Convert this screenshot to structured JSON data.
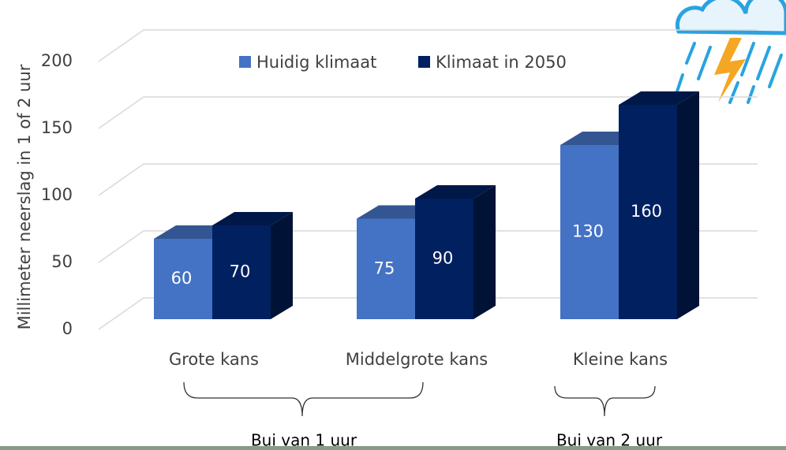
{
  "chart_data": {
    "type": "bar3d",
    "y_label": "Millimeter neerslag in 1 of 2 uur",
    "categories": [
      "Grote kans",
      "Middelgrote kans",
      "Kleine kans"
    ],
    "series": [
      {
        "name": "Huidig klimaat",
        "color": "#4472c4",
        "values": [
          60,
          75,
          130
        ]
      },
      {
        "name": "Klimaat in 2050",
        "color": "#002060",
        "values": [
          70,
          90,
          160
        ]
      }
    ],
    "ylim": [
      0,
      200
    ],
    "yticks": [
      0,
      50,
      100,
      150,
      200
    ],
    "grid": true,
    "legend": "top",
    "annotations": [
      "Bui van 1 uur",
      "Bui van 2 uur"
    ]
  }
}
